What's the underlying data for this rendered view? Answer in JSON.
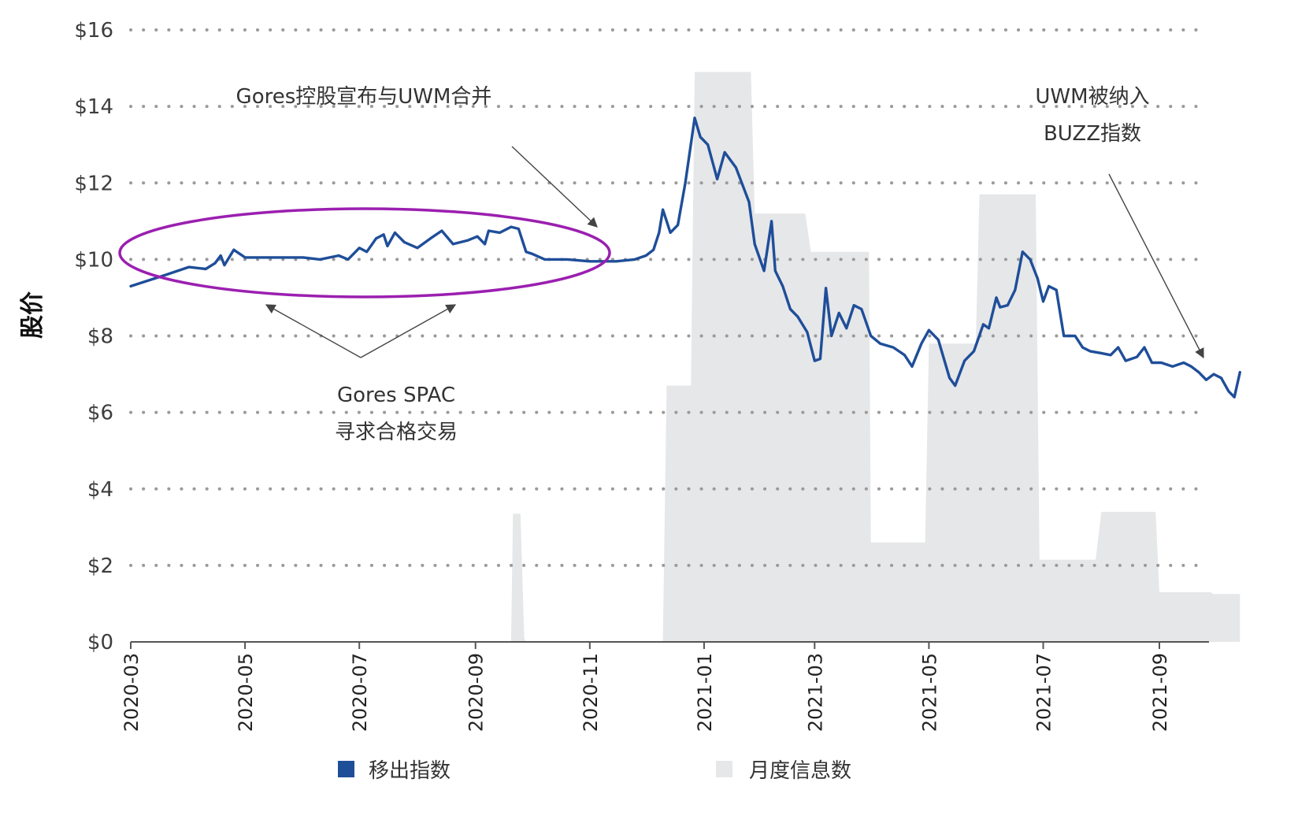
{
  "chart_data": {
    "type": "line",
    "ylabel": "股价",
    "ylim": [
      0,
      16
    ],
    "yticks": [
      "$0",
      "$2",
      "$4",
      "$6",
      "$8",
      "$10",
      "$12",
      "$14",
      "$16"
    ],
    "xticks": [
      "2020-03",
      "2020-05",
      "2020-07",
      "2020-09",
      "2020-11",
      "2021-01",
      "2021-03",
      "2021-05",
      "2021-07",
      "2021-09"
    ],
    "x_range": [
      "2020-03-01",
      "2021-09-30"
    ],
    "grid": true,
    "grid_style": "dotted",
    "legend_position": "bottom",
    "colors": {
      "price": "#1f4e99",
      "volume": "#e6e7e9",
      "ellipse": "#9b1fb0",
      "arrow": "#555555"
    },
    "series": [
      {
        "name": "移出指数",
        "type": "line",
        "points": [
          [
            "2020-03-01",
            9.3
          ],
          [
            "2020-03-20",
            9.6
          ],
          [
            "2020-04-01",
            9.8
          ],
          [
            "2020-04-10",
            9.75
          ],
          [
            "2020-04-15",
            9.9
          ],
          [
            "2020-04-18",
            10.1
          ],
          [
            "2020-04-20",
            9.85
          ],
          [
            "2020-04-25",
            10.25
          ],
          [
            "2020-05-01",
            10.05
          ],
          [
            "2020-05-15",
            10.05
          ],
          [
            "2020-06-01",
            10.05
          ],
          [
            "2020-06-10",
            10.0
          ],
          [
            "2020-06-20",
            10.1
          ],
          [
            "2020-06-25",
            10.0
          ],
          [
            "2020-07-01",
            10.3
          ],
          [
            "2020-07-05",
            10.2
          ],
          [
            "2020-07-10",
            10.55
          ],
          [
            "2020-07-14",
            10.65
          ],
          [
            "2020-07-16",
            10.35
          ],
          [
            "2020-07-20",
            10.7
          ],
          [
            "2020-07-25",
            10.45
          ],
          [
            "2020-08-01",
            10.3
          ],
          [
            "2020-08-08",
            10.55
          ],
          [
            "2020-08-14",
            10.75
          ],
          [
            "2020-08-20",
            10.4
          ],
          [
            "2020-08-28",
            10.5
          ],
          [
            "2020-09-02",
            10.6
          ],
          [
            "2020-09-06",
            10.4
          ],
          [
            "2020-09-08",
            10.75
          ],
          [
            "2020-09-14",
            10.7
          ],
          [
            "2020-09-20",
            10.85
          ],
          [
            "2020-09-24",
            10.8
          ],
          [
            "2020-09-28",
            10.2
          ],
          [
            "2020-10-01",
            10.15
          ],
          [
            "2020-10-08",
            10.0
          ],
          [
            "2020-10-20",
            10.0
          ],
          [
            "2020-11-01",
            9.95
          ],
          [
            "2020-11-15",
            9.95
          ],
          [
            "2020-11-25",
            10.0
          ],
          [
            "2020-12-01",
            10.1
          ],
          [
            "2020-12-05",
            10.25
          ],
          [
            "2020-12-08",
            10.7
          ],
          [
            "2020-12-10",
            11.3
          ],
          [
            "2020-12-12",
            11.0
          ],
          [
            "2020-12-14",
            10.7
          ],
          [
            "2020-12-18",
            10.9
          ],
          [
            "2020-12-22",
            12.0
          ],
          [
            "2020-12-27",
            13.7
          ],
          [
            "2020-12-30",
            13.2
          ],
          [
            "2021-01-03",
            13.0
          ],
          [
            "2021-01-08",
            12.1
          ],
          [
            "2021-01-12",
            12.8
          ],
          [
            "2021-01-18",
            12.4
          ],
          [
            "2021-01-25",
            11.5
          ],
          [
            "2021-01-28",
            10.4
          ],
          [
            "2021-02-02",
            9.7
          ],
          [
            "2021-02-06",
            11.0
          ],
          [
            "2021-02-08",
            9.7
          ],
          [
            "2021-02-12",
            9.3
          ],
          [
            "2021-02-16",
            8.7
          ],
          [
            "2021-02-20",
            8.5
          ],
          [
            "2021-02-25",
            8.1
          ],
          [
            "2021-03-01",
            7.35
          ],
          [
            "2021-03-04",
            7.4
          ],
          [
            "2021-03-07",
            9.25
          ],
          [
            "2021-03-10",
            8.0
          ],
          [
            "2021-03-14",
            8.6
          ],
          [
            "2021-03-18",
            8.2
          ],
          [
            "2021-03-22",
            8.8
          ],
          [
            "2021-03-26",
            8.7
          ],
          [
            "2021-03-31",
            8.0
          ],
          [
            "2021-04-05",
            7.8
          ],
          [
            "2021-04-12",
            7.7
          ],
          [
            "2021-04-18",
            7.5
          ],
          [
            "2021-04-22",
            7.2
          ],
          [
            "2021-04-27",
            7.8
          ],
          [
            "2021-05-01",
            8.15
          ],
          [
            "2021-05-06",
            7.9
          ],
          [
            "2021-05-12",
            6.9
          ],
          [
            "2021-05-15",
            6.7
          ],
          [
            "2021-05-20",
            7.35
          ],
          [
            "2021-05-25",
            7.6
          ],
          [
            "2021-05-30",
            8.3
          ],
          [
            "2021-06-02",
            8.2
          ],
          [
            "2021-06-06",
            9.0
          ],
          [
            "2021-06-08",
            8.75
          ],
          [
            "2021-06-12",
            8.8
          ],
          [
            "2021-06-16",
            9.2
          ],
          [
            "2021-06-20",
            10.2
          ],
          [
            "2021-06-24",
            10.0
          ],
          [
            "2021-06-28",
            9.5
          ],
          [
            "2021-07-01",
            8.9
          ],
          [
            "2021-07-04",
            9.3
          ],
          [
            "2021-07-08",
            9.2
          ],
          [
            "2021-07-12",
            8.0
          ],
          [
            "2021-07-18",
            8.0
          ],
          [
            "2021-07-22",
            7.7
          ],
          [
            "2021-07-26",
            7.6
          ],
          [
            "2021-08-01",
            7.55
          ],
          [
            "2021-08-06",
            7.5
          ],
          [
            "2021-08-10",
            7.7
          ],
          [
            "2021-08-14",
            7.35
          ],
          [
            "2021-08-20",
            7.45
          ],
          [
            "2021-08-24",
            7.7
          ],
          [
            "2021-08-28",
            7.3
          ],
          [
            "2021-09-02",
            7.3
          ],
          [
            "2021-09-08",
            7.2
          ],
          [
            "2021-09-14",
            7.3
          ],
          [
            "2021-09-18",
            7.2
          ],
          [
            "2021-09-22",
            7.05
          ],
          [
            "2021-09-26",
            6.85
          ],
          [
            "2021-09-30",
            7.0
          ],
          [
            "2021-10-04",
            6.9
          ],
          [
            "2021-10-08",
            6.55
          ],
          [
            "2021-10-11",
            6.4
          ],
          [
            "2021-10-14",
            7.05
          ]
        ]
      },
      {
        "name": "月度信息数",
        "type": "area",
        "points": [
          [
            "2020-03-01",
            0
          ],
          [
            "2020-09-20",
            0
          ],
          [
            "2020-09-21",
            3.35
          ],
          [
            "2020-09-25",
            3.35
          ],
          [
            "2020-09-27",
            0.1
          ],
          [
            "2020-09-28",
            0
          ],
          [
            "2020-12-10",
            0
          ],
          [
            "2020-12-12",
            6.7
          ],
          [
            "2020-12-25",
            6.7
          ],
          [
            "2020-12-27",
            14.9
          ],
          [
            "2021-01-26",
            14.9
          ],
          [
            "2021-01-28",
            11.2
          ],
          [
            "2021-02-24",
            11.2
          ],
          [
            "2021-02-27",
            10.2
          ],
          [
            "2021-03-30",
            10.2
          ],
          [
            "2021-03-31",
            2.6
          ],
          [
            "2021-04-29",
            2.6
          ],
          [
            "2021-05-01",
            7.8
          ],
          [
            "2021-05-26",
            7.8
          ],
          [
            "2021-05-28",
            11.7
          ],
          [
            "2021-06-27",
            11.7
          ],
          [
            "2021-06-29",
            2.15
          ],
          [
            "2021-07-29",
            2.15
          ],
          [
            "2021-08-01",
            3.4
          ],
          [
            "2021-08-30",
            3.4
          ],
          [
            "2021-09-01",
            1.3
          ],
          [
            "2021-09-28",
            1.3
          ],
          [
            "2021-09-30",
            1.25
          ],
          [
            "2021-10-14",
            1.25
          ],
          [
            "2021-10-14",
            0
          ]
        ]
      }
    ],
    "annotations": [
      {
        "id": "merger",
        "lines": [
          "Gores控股宣布与UWM合并"
        ]
      },
      {
        "id": "buzz",
        "lines": [
          "UWM被纳入",
          "BUZZ指数"
        ]
      },
      {
        "id": "spac",
        "lines": [
          "Gores SPAC",
          "寻求合格交易"
        ]
      }
    ]
  }
}
